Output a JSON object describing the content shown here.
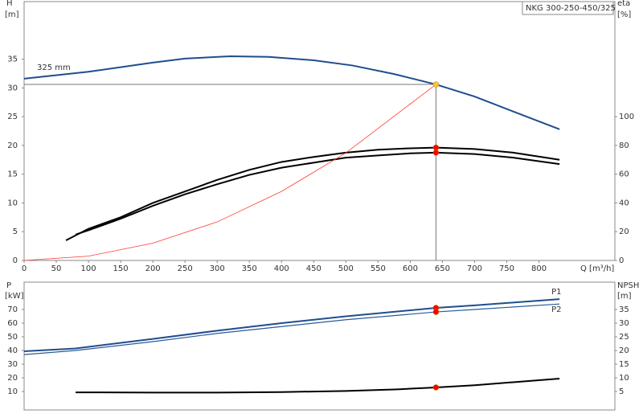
{
  "chart_data": [
    {
      "type": "line",
      "y_label": "H",
      "y_unit": "[m]",
      "y2_label": "eta",
      "y2_unit": "[%]",
      "x_label": "Q [m³/h]",
      "legend_box": "NKG 300-250-450/325",
      "xlim": [
        0,
        918
      ],
      "xticks": [
        0,
        50,
        100,
        150,
        200,
        250,
        300,
        350,
        400,
        450,
        500,
        550,
        600,
        650,
        700,
        750,
        800
      ],
      "ylim": [
        0,
        45
      ],
      "yticks": [
        0,
        5,
        10,
        15,
        20,
        25,
        30,
        35
      ],
      "y2lim": [
        0,
        180
      ],
      "y2ticks": [
        0,
        20,
        40,
        60,
        80,
        100
      ],
      "series": [
        {
          "name": "325 mm",
          "color": "#1f4e8c",
          "width": 2,
          "x": [
            0,
            100,
            200,
            250,
            320,
            380,
            450,
            510,
            575,
            640,
            700,
            760,
            832
          ],
          "values": [
            31.6,
            32.8,
            34.4,
            35.1,
            35.5,
            35.4,
            34.8,
            33.9,
            32.4,
            30.6,
            28.5,
            25.9,
            22.8
          ]
        },
        {
          "color": "#000000",
          "width": 2,
          "axis": "y2",
          "x": [
            65,
            100,
            150,
            200,
            250,
            300,
            350,
            400,
            450,
            500,
            550,
            600,
            640,
            700,
            760,
            832
          ],
          "values": [
            14,
            22,
            30,
            40,
            48,
            56,
            63,
            68.5,
            72,
            75,
            77,
            78,
            78.5,
            77.5,
            75,
            70
          ]
        },
        {
          "color": "#000000",
          "width": 2,
          "axis": "y2",
          "x": [
            80,
            100,
            150,
            200,
            250,
            300,
            350,
            400,
            450,
            500,
            550,
            600,
            640,
            700,
            760,
            832
          ],
          "values": [
            18,
            21,
            29,
            38,
            46,
            53,
            59.5,
            64.5,
            68,
            71.5,
            73,
            74.5,
            75,
            74,
            71.5,
            67
          ]
        },
        {
          "color": "#ff3b30",
          "width": 0.8,
          "x": [
            0,
            100,
            200,
            300,
            400,
            500,
            640
          ],
          "values": [
            0,
            0.75,
            3.0,
            6.7,
            12.0,
            18.7,
            30.6
          ]
        }
      ],
      "markers": [
        {
          "x": 640,
          "y": 30.6,
          "color": "#f5c542",
          "guides": true
        },
        {
          "x": 640,
          "y": 78.5,
          "color": "#ff0000",
          "axis": "y2"
        },
        {
          "x": 640,
          "y": 75,
          "color": "#ff0000",
          "axis": "y2"
        }
      ]
    },
    {
      "type": "line",
      "y_label": "P",
      "y_unit": "[kW]",
      "y2_label": "NPSH",
      "y2_unit": "[m]",
      "xlim": [
        0,
        918
      ],
      "ylim": [
        -3.5,
        90
      ],
      "yticks": [
        10,
        20,
        30,
        40,
        50,
        60,
        70
      ],
      "y2lim": [
        -1.75,
        45
      ],
      "y2ticks": [
        5,
        10,
        15,
        20,
        25,
        30,
        35
      ],
      "series": [
        {
          "name": "P1",
          "color": "#1f4e8c",
          "width": 2,
          "x": [
            0,
            80,
            200,
            300,
            400,
            500,
            640,
            700,
            832
          ],
          "values": [
            39.4,
            41.5,
            48.5,
            54.5,
            60,
            65,
            71.2,
            73,
            77.6
          ]
        },
        {
          "name": "P2",
          "color": "#2a5a9a",
          "width": 1.2,
          "x": [
            0,
            80,
            200,
            300,
            400,
            500,
            640,
            700,
            832
          ],
          "values": [
            37,
            40,
            46.5,
            52.5,
            57.5,
            62.5,
            68.2,
            70,
            74
          ]
        },
        {
          "color": "#000000",
          "width": 2,
          "axis": "y2",
          "x": [
            80,
            200,
            300,
            400,
            500,
            580,
            640,
            700,
            760,
            832
          ],
          "values": [
            4.7,
            4.6,
            4.6,
            4.8,
            5.2,
            5.8,
            6.5,
            7.3,
            8.4,
            9.7
          ]
        }
      ],
      "markers": [
        {
          "x": 640,
          "y": 71.2,
          "color": "#ff0000"
        },
        {
          "x": 640,
          "y": 68.2,
          "color": "#ff0000"
        },
        {
          "x": 640,
          "y": 6.5,
          "color": "#ff0000",
          "axis": "y2"
        }
      ]
    }
  ]
}
